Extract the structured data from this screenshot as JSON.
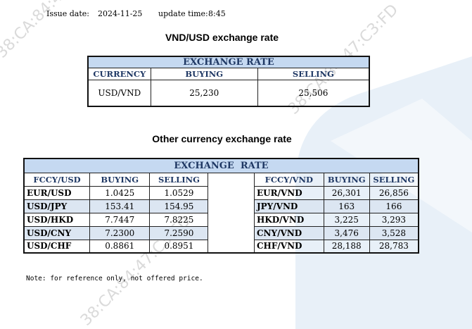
{
  "header": {
    "issue_date_label": "Issue date:",
    "issue_date": "2024-11-25",
    "update_time_label": "update time:",
    "update_time": "8:45"
  },
  "table1": {
    "title": "VND/USD exchange rate",
    "caption": "EXCHANGE RATE",
    "columns": [
      "CURRENCY",
      "BUYING",
      "SELLING"
    ],
    "rows": [
      [
        "USD/VND",
        "25,230",
        "25,506"
      ]
    ]
  },
  "table2": {
    "title": "Other currency exchange rate",
    "caption": "EXCHANGE  RATE",
    "columns": [
      "FCCY/USD",
      "BUYING",
      "SELLING",
      "FCCY/VND",
      "BUYING",
      "SELLING"
    ],
    "rows": [
      [
        "EUR/USD",
        "1.0425",
        "1.0529",
        "EUR/VND",
        "26,301",
        "26,856"
      ],
      [
        "USD/JPY",
        "153.41",
        "154.95",
        "JPY/VND",
        "163",
        "166"
      ],
      [
        "USD/HKD",
        "7.7447",
        "7.8225",
        "HKD/VND",
        "3,225",
        "3,293"
      ],
      [
        "USD/CNY",
        "7.2300",
        "7.2590",
        "CNY/VND",
        "3,476",
        "3,528"
      ],
      [
        "USD/CHF",
        "0.8861",
        "0.8951",
        "CHF/VND",
        "28,188",
        "28,783"
      ]
    ]
  },
  "note": "Note: for reference only, not offered price.",
  "watermark": "38:CA:84:47:C3:FD"
}
